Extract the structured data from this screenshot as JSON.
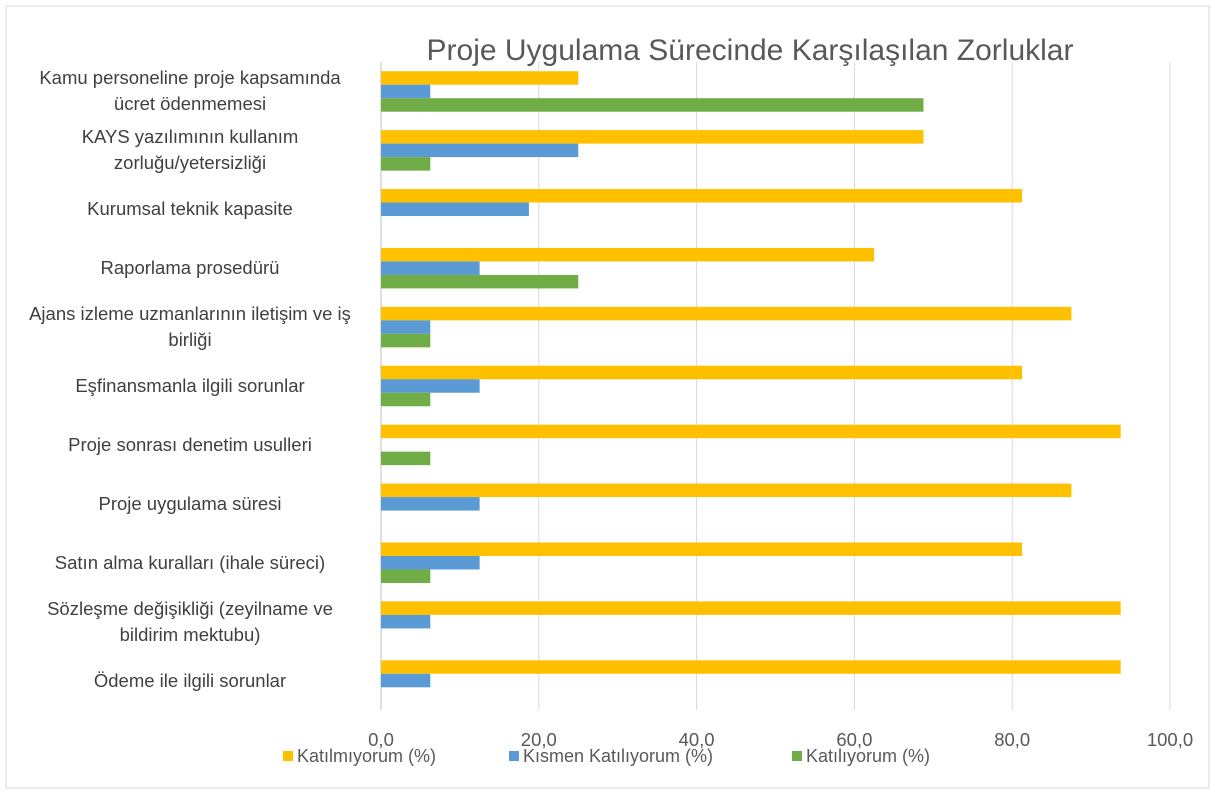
{
  "chart_data": {
    "type": "bar",
    "orientation": "horizontal",
    "title": "Proje Uygulama Sürecinde Karşılaşılan Zorluklar",
    "categories": [
      "Kamu personeline proje kapsamında ücret ödenmemesi",
      "KAYS yazılımının kullanım zorluğu/yetersizliği",
      "Kurumsal teknik kapasite",
      "Raporlama prosedürü",
      "Ajans izleme uzmanlarının iletişim ve iş birliği",
      "Eşfinansmanla ilgili sorunlar",
      "Proje sonrası denetim usulleri",
      "Proje uygulama süresi",
      "Satın alma kuralları (ihale süreci)",
      "Sözleşme değişikliği (zeyilname ve bildirim mektubu)",
      "Ödeme ile ilgili sorunlar"
    ],
    "series": [
      {
        "name": "Katılmıyorum (%)",
        "color": "#FFC000",
        "values": [
          25,
          68.75,
          81.25,
          62.5,
          87.5,
          81.25,
          93.75,
          87.5,
          81.25,
          93.75,
          93.75
        ]
      },
      {
        "name": "Kısmen Katılıyorum (%)",
        "color": "#5B9BD5",
        "values": [
          6.25,
          25,
          18.75,
          12.5,
          6.25,
          12.5,
          0,
          12.5,
          12.5,
          6.25,
          6.25
        ]
      },
      {
        "name": "Katılıyorum (%)",
        "color": "#70AD47",
        "values": [
          68.75,
          6.25,
          0,
          25,
          6.25,
          6.25,
          6.25,
          0,
          6.25,
          0,
          0
        ]
      }
    ],
    "xlim": [
      0,
      100
    ],
    "xticks": [
      {
        "value": 0,
        "label": "0,0"
      },
      {
        "value": 20,
        "label": "20,0"
      },
      {
        "value": 40,
        "label": "40,0"
      },
      {
        "value": 60,
        "label": "60,0"
      },
      {
        "value": 80,
        "label": "80,0"
      },
      {
        "value": 100,
        "label": "100,0"
      }
    ],
    "grid": true,
    "legend": "bottom"
  }
}
